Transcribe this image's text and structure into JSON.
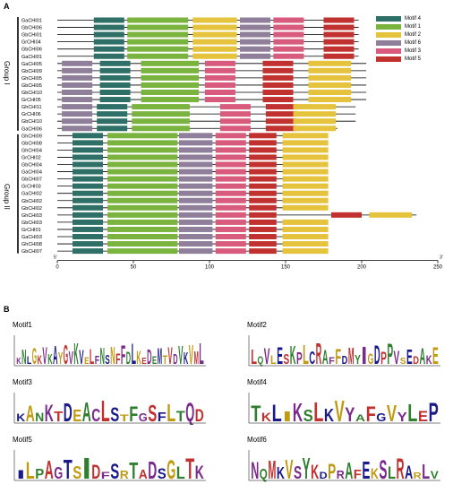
{
  "panels": {
    "a": "A",
    "b": "B"
  },
  "legend": [
    {
      "label": "Motif 4",
      "color": "#2e7068"
    },
    {
      "label": "Motif 1",
      "color": "#7bb33f"
    },
    {
      "label": "Motif 2",
      "color": "#e6c33c"
    },
    {
      "label": "Motif 6",
      "color": "#8f7f9a"
    },
    {
      "label": "Motif 3",
      "color": "#d85a7c"
    },
    {
      "label": "Motif 5",
      "color": "#c0312f"
    }
  ],
  "groups": [
    "Group I",
    "Group II"
  ],
  "axis": {
    "ticks": [
      "0",
      "50",
      "100",
      "150",
      "200",
      "250"
    ],
    "end5": "5'",
    "end3": "3'"
  },
  "genes": [
    {
      "name": "GaCHI01",
      "color": "#000000",
      "len": 198
    },
    {
      "name": "GbCHI06",
      "color": "#000000",
      "len": 198
    },
    {
      "name": "GbCHI01",
      "color": "#000000",
      "len": 198
    },
    {
      "name": "GrCHI04",
      "color": "#000000",
      "len": 198
    },
    {
      "name": "GbCHI06",
      "color": "#000000",
      "len": 198
    },
    {
      "name": "GaCHI01",
      "color": "#000000",
      "len": 198
    },
    {
      "name": "GaCHI05",
      "color": "#000000",
      "len": 203
    },
    {
      "name": "GbCHI09",
      "color": "#000000",
      "len": 203
    },
    {
      "name": "GhCHI05",
      "color": "#000000",
      "len": 203
    },
    {
      "name": "GbCHI05",
      "color": "#000000",
      "len": 203
    },
    {
      "name": "GbCHI10",
      "color": "#000000",
      "len": 203
    },
    {
      "name": "GrCHI05",
      "color": "#000000",
      "len": 203
    },
    {
      "name": "GhCHI11",
      "color": "#000000",
      "len": 196
    },
    {
      "name": "GrCHI06",
      "color": "#000000",
      "len": 196
    },
    {
      "name": "GbCHI10",
      "color": "#000000",
      "len": 196
    },
    {
      "name": "GaCHI06",
      "color": "#000000",
      "len": 184
    },
    {
      "name": "GhCHI09",
      "color": "#000000",
      "len": 172
    },
    {
      "name": "GbCHI08",
      "color": "#000000",
      "len": 172
    },
    {
      "name": "GhCHI04",
      "color": "#000000",
      "len": 172
    },
    {
      "name": "GrCHI02",
      "color": "#000000",
      "len": 172
    },
    {
      "name": "GbCHI04",
      "color": "#000000",
      "len": 172
    },
    {
      "name": "GaCHI04",
      "color": "#000000",
      "len": 172
    },
    {
      "name": "GbCHI07",
      "color": "#000000",
      "len": 172
    },
    {
      "name": "GrCHI03",
      "color": "#000000",
      "len": 172
    },
    {
      "name": "GaCHI02",
      "color": "#000000",
      "len": 172
    },
    {
      "name": "GbCHI02",
      "color": "#000000",
      "len": 172
    },
    {
      "name": "GbCHI02",
      "color": "#000000",
      "len": 172
    },
    {
      "name": "GhCHI03",
      "color": "#000000",
      "len": 236
    },
    {
      "name": "GbCHI03",
      "color": "#000000",
      "len": 172
    },
    {
      "name": "GrCHI01",
      "color": "#000000",
      "len": 172
    },
    {
      "name": "GaCHI03",
      "color": "#000000",
      "len": 172
    },
    {
      "name": "GhCHI08",
      "color": "#000000",
      "len": 172
    },
    {
      "name": "GbCHI07",
      "color": "#000000",
      "len": 172
    }
  ],
  "logos": [
    {
      "title": "Motif1",
      "seq": "KNLGKVKAYGVKVELFNSNFFDLKEDEMTVDVKVML",
      "colors": [
        "#7a2a8a",
        "#2f7f2f",
        "#1a1a8a",
        "#c09a10",
        "#c0312f"
      ]
    },
    {
      "title": "Motif2",
      "seq": "LQVLESKPLCRAFFDMYIGDPPVSEDAKE",
      "colors": [
        "#c0312f",
        "#2f7f2f",
        "#7a2a8a",
        "#c09a10",
        "#1a1a8a"
      ]
    },
    {
      "title": "Motif3",
      "seq": "KANKTDEACLSTFGSFLTQD",
      "colors": [
        "#1a1a8a",
        "#c09a10",
        "#2f7f2f",
        "#7a2a8a",
        "#c0312f"
      ]
    },
    {
      "title": "Motif4",
      "seq": "TKLIKSLKVYAFGVYLEP",
      "colors": [
        "#2f7f2f",
        "#c0312f",
        "#1a1a8a",
        "#c09a10",
        "#7a2a8a"
      ]
    },
    {
      "title": "Motif5",
      "seq": "ILPAGTSIDFSRTADSGLTK",
      "colors": [
        "#1a1a8a",
        "#c09a10",
        "#2f7f2f",
        "#c0312f",
        "#7a2a8a"
      ]
    },
    {
      "title": "Motif6",
      "seq": "NQMKVSYKDPRAFEKSLRARLV",
      "colors": [
        "#7a2a8a",
        "#2f7f2f",
        "#c0312f",
        "#1a1a8a",
        "#c09a10"
      ]
    }
  ]
}
